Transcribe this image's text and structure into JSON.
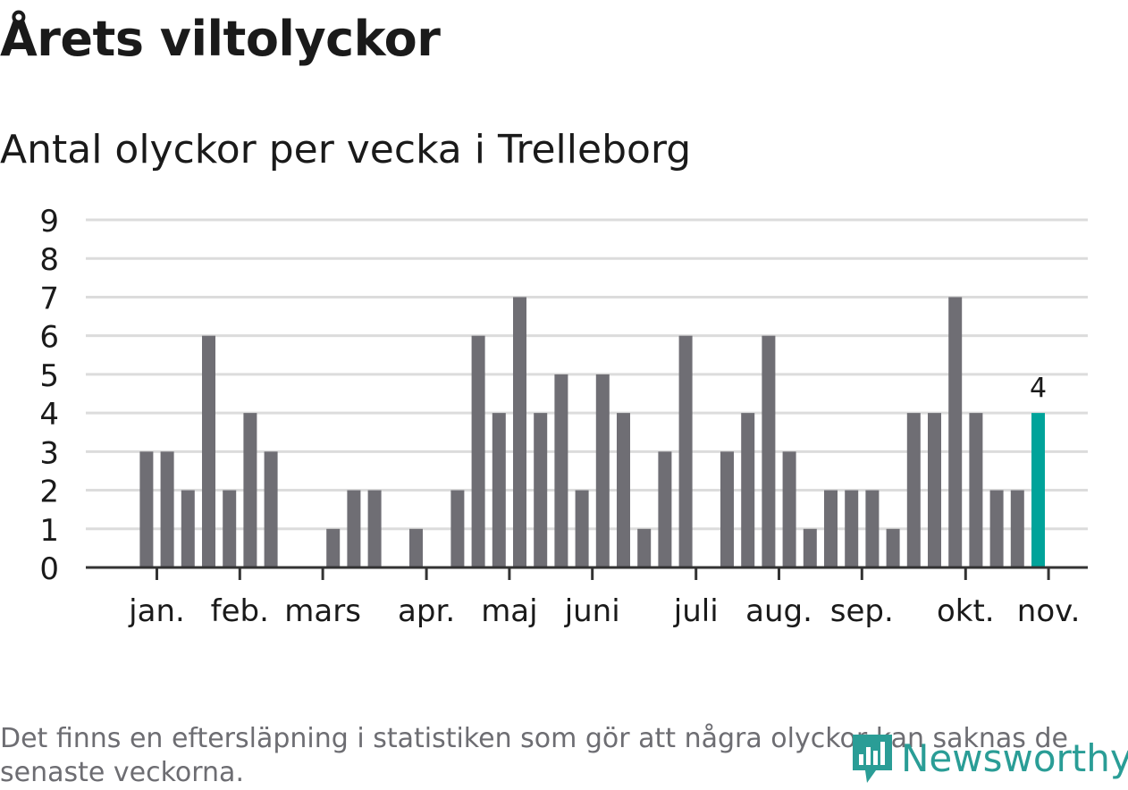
{
  "title": "Årets viltolyckor",
  "subtitle": "Antal olyckor per vecka i Trelleborg",
  "footnote": "Det finns en eftersläpning i statistiken som gör att några olyckor kan saknas de senaste veckorna.",
  "logo": {
    "text": "Newsworthy",
    "icon": "newsworthy-bar-icon"
  },
  "colors": {
    "bar": "#6f6e74",
    "highlight": "#00a39a",
    "grid": "#dcdcdc",
    "axis": "#333333",
    "text": "#1a1a1a"
  },
  "chart_data": {
    "type": "bar",
    "title": "Antal olyckor per vecka i Trelleborg",
    "xlabel": "",
    "ylabel": "",
    "ylim": [
      0,
      9
    ],
    "yticks": [
      0,
      1,
      2,
      3,
      4,
      5,
      6,
      7,
      8,
      9
    ],
    "values": [
      0,
      0,
      3,
      3,
      2,
      6,
      2,
      4,
      3,
      0,
      0,
      1,
      2,
      2,
      0,
      1,
      0,
      2,
      6,
      4,
      7,
      4,
      5,
      2,
      5,
      4,
      1,
      3,
      6,
      0,
      3,
      4,
      6,
      3,
      1,
      2,
      2,
      2,
      1,
      4,
      4,
      7,
      4,
      2,
      2,
      4
    ],
    "highlight_index": 45,
    "highlight_label": "4",
    "month_labels": [
      {
        "label": "jan.",
        "tick": true,
        "week_index": 2.5
      },
      {
        "label": "feb.",
        "tick": true,
        "week_index": 6.5
      },
      {
        "label": "mars",
        "tick": true,
        "week_index": 10.5
      },
      {
        "label": "apr.",
        "tick": true,
        "week_index": 15.5
      },
      {
        "label": "maj",
        "tick": true,
        "week_index": 19.5
      },
      {
        "label": "juni",
        "tick": true,
        "week_index": 23.5
      },
      {
        "label": "juli",
        "tick": true,
        "week_index": 28.5
      },
      {
        "label": "aug.",
        "tick": true,
        "week_index": 32.5
      },
      {
        "label": "sep.",
        "tick": true,
        "week_index": 36.5
      },
      {
        "label": "okt.",
        "tick": true,
        "week_index": 41.5
      },
      {
        "label": "nov.",
        "tick": true,
        "week_index": 45.5
      }
    ]
  }
}
